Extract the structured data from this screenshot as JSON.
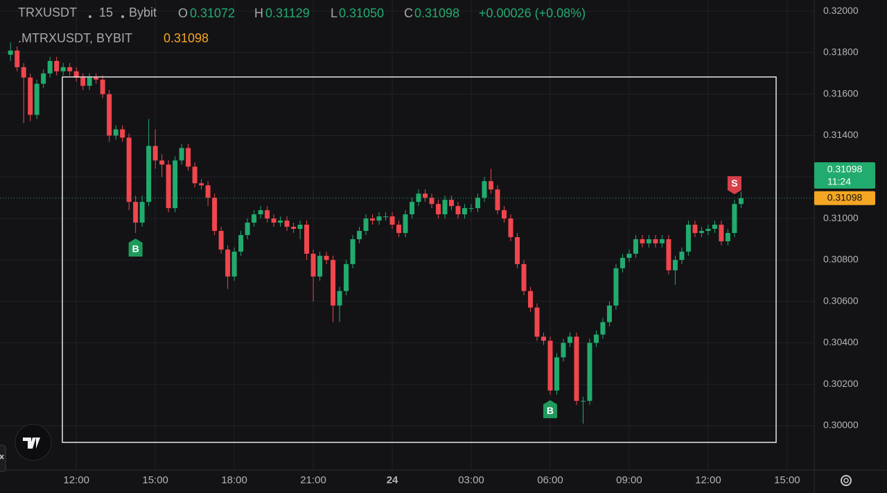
{
  "legend": {
    "symbol": "TRXUSDT",
    "interval": "15",
    "exchange": "Bybit",
    "open_label": "O",
    "open": "0.31072",
    "high_label": "H",
    "high": "0.31129",
    "low_label": "L",
    "low": "0.31050",
    "close_label": "C",
    "close": "0.31098",
    "change": "+0.00026 (+0.08%)",
    "indicator": ".MTRXUSDT, BYBIT",
    "indicator_value": "0.31098"
  },
  "chart_data": {
    "type": "candlestick",
    "up_color": "#22ab6e",
    "down_color": "#f0464d",
    "grid": true,
    "xlim": [
      9.1,
      40.03
    ],
    "ylim": [
      0.29786,
      0.32054
    ],
    "xticks": [
      {
        "value": 12,
        "label": "12:00"
      },
      {
        "value": 15,
        "label": "15:00"
      },
      {
        "value": 18,
        "label": "18:00"
      },
      {
        "value": 21,
        "label": "21:00"
      },
      24,
      {
        "value": 27,
        "label": "03:00"
      },
      {
        "value": 30,
        "label": "06:00"
      },
      {
        "value": 33,
        "label": "09:00"
      },
      {
        "value": 36,
        "label": "12:00"
      },
      {
        "value": 39,
        "label": "15:00"
      }
    ],
    "yticks": [
      {
        "value": 0.3,
        "label": "0.30000"
      },
      {
        "value": 0.302,
        "label": "0.30200"
      },
      {
        "value": 0.304,
        "label": "0.30400"
      },
      {
        "value": 0.306,
        "label": "0.30600"
      },
      {
        "value": 0.308,
        "label": "0.30800"
      },
      {
        "value": 0.31,
        "label": "0.31000"
      },
      {
        "value": 0.312,
        "label": "0.31200"
      },
      {
        "value": 0.314,
        "label": "0.31400"
      },
      {
        "value": 0.316,
        "label": "0.31600"
      },
      {
        "value": 0.318,
        "label": "0.31800"
      },
      {
        "value": 0.32,
        "label": "0.32000"
      }
    ],
    "x": [
      9.5,
      9.75,
      10,
      10.25,
      10.5,
      10.75,
      11,
      11.25,
      11.5,
      11.75,
      12,
      12.25,
      12.5,
      12.75,
      13,
      13.25,
      13.5,
      13.75,
      14,
      14.25,
      14.5,
      14.75,
      15,
      15.25,
      15.5,
      15.75,
      16,
      16.25,
      16.5,
      16.75,
      17,
      17.25,
      17.5,
      17.75,
      18,
      18.25,
      18.5,
      18.75,
      19,
      19.25,
      19.5,
      19.75,
      20,
      20.25,
      20.5,
      20.75,
      21,
      21.25,
      21.5,
      21.75,
      22,
      22.25,
      22.5,
      22.75,
      23,
      23.25,
      23.5,
      23.75,
      24,
      24.25,
      24.5,
      24.75,
      25,
      25.25,
      25.5,
      25.75,
      26,
      26.25,
      26.5,
      26.75,
      27,
      27.25,
      27.5,
      27.75,
      28,
      28.25,
      28.5,
      28.75,
      29,
      29.25,
      29.5,
      29.75,
      30,
      30.25,
      30.5,
      30.75,
      31,
      31.25,
      31.5,
      31.75,
      32,
      32.25,
      32.5,
      32.75,
      33,
      33.25,
      33.5,
      33.75,
      34,
      34.25,
      34.5,
      34.75,
      35,
      35.25,
      35.5,
      35.75,
      36,
      36.25,
      36.5,
      36.75,
      37,
      37.25
    ],
    "open": [
      0.3179,
      0.3181,
      0.3173,
      0.3168,
      0.315,
      0.3165,
      0.317,
      0.3176,
      0.3171,
      0.3173,
      0.3171,
      0.3168,
      0.3164,
      0.3168,
      0.3167,
      0.316,
      0.314,
      0.3143,
      0.3139,
      0.3108,
      0.3098,
      0.3108,
      0.3135,
      0.3128,
      0.3126,
      0.3105,
      0.3128,
      0.3134,
      0.3125,
      0.3117,
      0.3116,
      0.311,
      0.3094,
      0.3085,
      0.3072,
      0.3084,
      0.3092,
      0.3098,
      0.3102,
      0.3104,
      0.31,
      0.3098,
      0.3099,
      0.3096,
      0.3095,
      0.3097,
      0.3083,
      0.3072,
      0.3082,
      0.308,
      0.3058,
      0.3065,
      0.3078,
      0.309,
      0.3094,
      0.31,
      0.3099,
      0.3101,
      0.3101,
      0.3097,
      0.3093,
      0.3102,
      0.3108,
      0.3112,
      0.311,
      0.3107,
      0.3102,
      0.3109,
      0.3106,
      0.3102,
      0.3105,
      0.3105,
      0.311,
      0.3118,
      0.3114,
      0.3104,
      0.31,
      0.3091,
      0.3078,
      0.3065,
      0.3057,
      0.3043,
      0.3041,
      0.3017,
      0.3033,
      0.304,
      0.3043,
      0.3012,
      0.3012,
      0.304,
      0.3044,
      0.305,
      0.3058,
      0.3076,
      0.3081,
      0.3083,
      0.309,
      0.3088,
      0.309,
      0.3088,
      0.309,
      0.3075,
      0.308,
      0.3084,
      0.3097,
      0.3093,
      0.3094,
      0.3095,
      0.3097,
      0.3089,
      0.3093,
      0.3107
    ],
    "high": [
      0.3185,
      0.3183,
      0.3175,
      0.317,
      0.3167,
      0.3172,
      0.3178,
      0.3178,
      0.3175,
      0.3175,
      0.3173,
      0.317,
      0.317,
      0.317,
      0.3169,
      0.3162,
      0.3145,
      0.3145,
      0.3141,
      0.3111,
      0.3111,
      0.3148,
      0.3143,
      0.3131,
      0.3128,
      0.313,
      0.3136,
      0.3136,
      0.3127,
      0.3119,
      0.3118,
      0.3112,
      0.3096,
      0.3087,
      0.3086,
      0.3094,
      0.31,
      0.3104,
      0.3106,
      0.3106,
      0.3102,
      0.3101,
      0.3101,
      0.3098,
      0.3099,
      0.3099,
      0.3085,
      0.3084,
      0.3084,
      0.3082,
      0.3067,
      0.308,
      0.3092,
      0.3096,
      0.3102,
      0.3102,
      0.3103,
      0.3103,
      0.3103,
      0.3099,
      0.3104,
      0.311,
      0.3114,
      0.3114,
      0.3112,
      0.3109,
      0.3111,
      0.3111,
      0.3108,
      0.3107,
      0.3107,
      0.3112,
      0.312,
      0.3124,
      0.3116,
      0.3106,
      0.3102,
      0.3093,
      0.308,
      0.3067,
      0.3059,
      0.3045,
      0.3043,
      0.3035,
      0.3042,
      0.3045,
      0.3045,
      0.3014,
      0.3042,
      0.3046,
      0.3052,
      0.306,
      0.3078,
      0.3083,
      0.3085,
      0.3092,
      0.3092,
      0.3092,
      0.3092,
      0.3092,
      0.3092,
      0.3082,
      0.3086,
      0.3099,
      0.3099,
      0.3096,
      0.3097,
      0.3099,
      0.3099,
      0.3095,
      0.3109,
      0.3113
    ],
    "low": [
      0.3176,
      0.3171,
      0.3146,
      0.3147,
      0.3148,
      0.3163,
      0.3168,
      0.3169,
      0.3169,
      0.3169,
      0.3166,
      0.3162,
      0.3162,
      0.3165,
      0.3158,
      0.3137,
      0.3138,
      0.3137,
      0.3104,
      0.3093,
      0.3096,
      0.3106,
      0.3124,
      0.312,
      0.3103,
      0.3103,
      0.3126,
      0.3123,
      0.3115,
      0.3114,
      0.3106,
      0.3092,
      0.3083,
      0.3066,
      0.307,
      0.3082,
      0.309,
      0.3096,
      0.31,
      0.3098,
      0.3096,
      0.3096,
      0.3094,
      0.3093,
      0.309,
      0.308,
      0.306,
      0.307,
      0.3078,
      0.305,
      0.305,
      0.3063,
      0.3076,
      0.3088,
      0.3092,
      0.3097,
      0.3097,
      0.3099,
      0.3095,
      0.3091,
      0.3091,
      0.31,
      0.3106,
      0.3108,
      0.3105,
      0.31,
      0.31,
      0.3104,
      0.31,
      0.31,
      0.3103,
      0.3103,
      0.3108,
      0.3112,
      0.3102,
      0.3098,
      0.3089,
      0.3076,
      0.3063,
      0.3055,
      0.3041,
      0.3039,
      0.3015,
      0.3015,
      0.3031,
      0.3038,
      0.301,
      0.3001,
      0.301,
      0.3038,
      0.3042,
      0.3048,
      0.3056,
      0.3074,
      0.3079,
      0.3081,
      0.3086,
      0.3086,
      0.3086,
      0.3086,
      0.3073,
      0.3068,
      0.3078,
      0.3082,
      0.3091,
      0.3091,
      0.3092,
      0.3093,
      0.3087,
      0.3087,
      0.3091,
      0.3105
    ],
    "close": [
      0.3181,
      0.3173,
      0.3168,
      0.315,
      0.3165,
      0.317,
      0.3176,
      0.3171,
      0.3173,
      0.3171,
      0.3168,
      0.3164,
      0.3168,
      0.3167,
      0.316,
      0.314,
      0.3143,
      0.3139,
      0.3108,
      0.3098,
      0.3108,
      0.3135,
      0.3128,
      0.3126,
      0.3105,
      0.3128,
      0.3134,
      0.3125,
      0.3117,
      0.3116,
      0.311,
      0.3094,
      0.3085,
      0.3072,
      0.3084,
      0.3092,
      0.3098,
      0.3102,
      0.3104,
      0.31,
      0.3098,
      0.3099,
      0.3096,
      0.3095,
      0.3097,
      0.3083,
      0.3072,
      0.3082,
      0.308,
      0.3058,
      0.3065,
      0.3078,
      0.309,
      0.3094,
      0.31,
      0.3099,
      0.3101,
      0.3101,
      0.3097,
      0.3093,
      0.3102,
      0.3108,
      0.3112,
      0.311,
      0.3107,
      0.3102,
      0.3109,
      0.3106,
      0.3102,
      0.3105,
      0.3105,
      0.311,
      0.3118,
      0.3114,
      0.3104,
      0.31,
      0.3091,
      0.3078,
      0.3065,
      0.3057,
      0.3043,
      0.3041,
      0.3017,
      0.3033,
      0.304,
      0.3043,
      0.3012,
      0.3012,
      0.304,
      0.3044,
      0.305,
      0.3058,
      0.3076,
      0.3081,
      0.3083,
      0.309,
      0.3088,
      0.309,
      0.3088,
      0.309,
      0.3075,
      0.308,
      0.3084,
      0.3097,
      0.3093,
      0.3094,
      0.3095,
      0.3097,
      0.3089,
      0.3093,
      0.3107,
      0.31098
    ],
    "markers": [
      {
        "x": 14.25,
        "label": "B",
        "color": "#1f9a5c",
        "side": "below"
      },
      {
        "x": 30,
        "label": "B",
        "color": "#1f9a5c",
        "side": "below"
      },
      {
        "x": 37,
        "label": "S",
        "color": "#d8404a",
        "side": "above"
      }
    ],
    "last_price": {
      "value": 0.31098,
      "label": "0.31098"
    },
    "countdown": "11:24",
    "last_price_color": "#22ab6e",
    "indicator_price": {
      "value": 0.31098,
      "label": "0.31098"
    },
    "indicator_color": "#f5a623"
  }
}
